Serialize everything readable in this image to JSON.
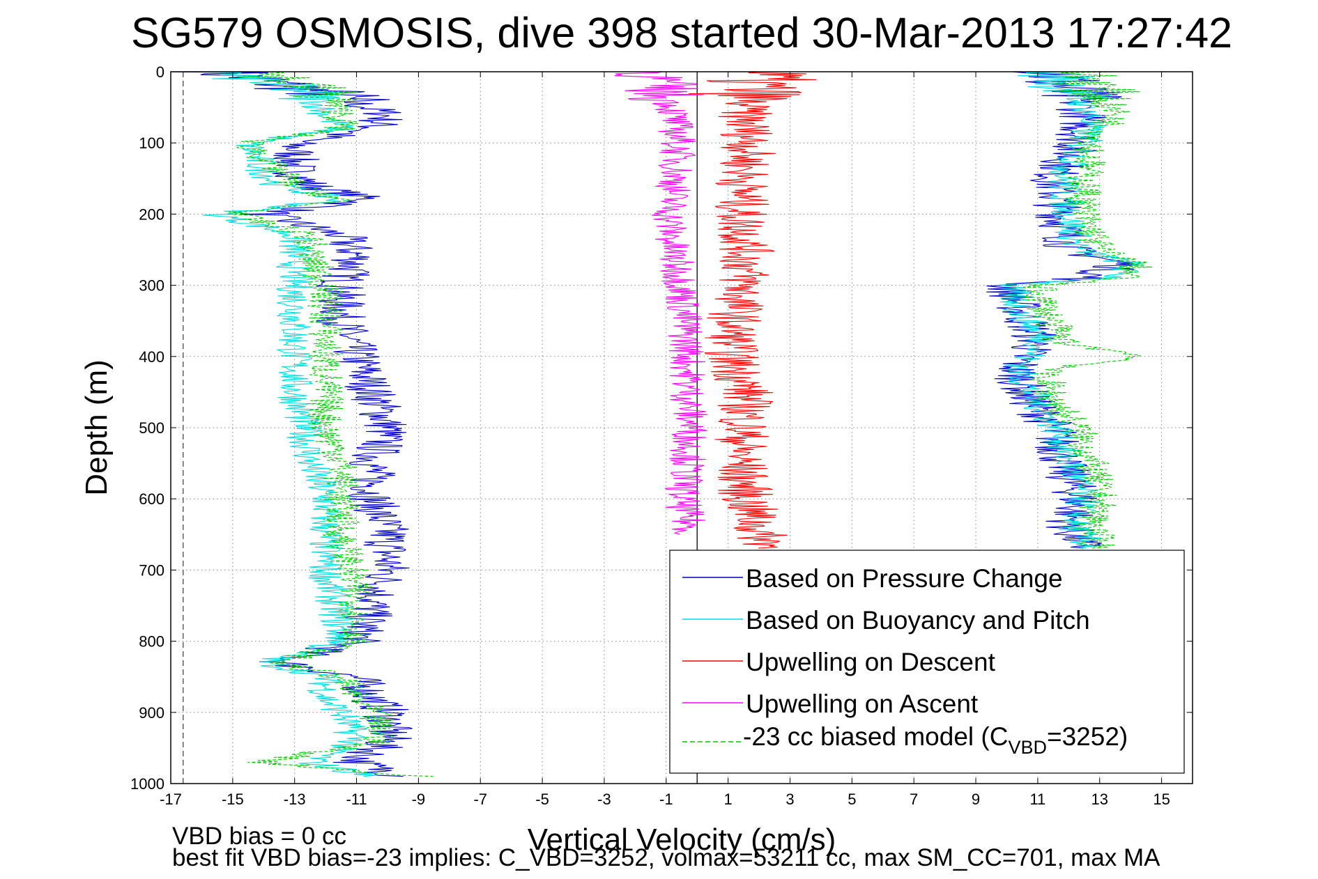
{
  "chart_data": {
    "type": "line",
    "title": "SG579 OSMOSIS, dive 398 started 30-Mar-2013 17:27:42",
    "xlabel": "Vertical Velocity (cm/s)",
    "ylabel": "Depth (m)",
    "xlim": [
      -17,
      16
    ],
    "ylim": [
      0,
      1000
    ],
    "y_reversed": true,
    "grid": true,
    "legend_position": "bottom-right",
    "xticks": [
      "-17",
      "-15",
      "-13",
      "-11",
      "-9",
      "-7",
      "-5",
      "-3",
      "-1",
      "1",
      "3",
      "5",
      "7",
      "9",
      "11",
      "13",
      "15"
    ],
    "yticks": [
      "0",
      "100",
      "200",
      "300",
      "400",
      "500",
      "600",
      "700",
      "800",
      "900",
      "1000"
    ],
    "reference_lines": [
      {
        "x": 0,
        "style": "solid",
        "color": "#000000"
      },
      {
        "x": -16.6,
        "style": "dashed",
        "color": "#555555"
      }
    ],
    "series": [
      {
        "name": "Based on Pressure Change",
        "color": "#0000cc",
        "style": "solid",
        "profiles": [
          {
            "depth": [
              0,
              30,
              60,
              80,
              100,
              140,
              160,
              180,
              200,
              230,
              260,
              300,
              350,
              400,
              450,
              500,
              550,
              600,
              650,
              700,
              750,
              800,
              830,
              850,
              880,
              900,
              940,
              970,
              990
            ],
            "x": [
              -15.5,
              -12,
              -10,
              -10.5,
              -13,
              -13,
              -12.5,
              -10.5,
              -14,
              -11.5,
              -11,
              -11.5,
              -11.5,
              -11,
              -10.5,
              -10,
              -10.5,
              -10.5,
              -10,
              -10,
              -10.5,
              -11,
              -13.5,
              -11,
              -10.5,
              -10,
              -10,
              -11,
              -9.5
            ]
          },
          {
            "depth": [
              0,
              30,
              60,
              100,
              150,
              200,
              250,
              270,
              290,
              300,
              340,
              380,
              400,
              420,
              460,
              500,
              550,
              600,
              640,
              670
            ],
            "x": [
              11.5,
              12,
              12.5,
              12.3,
              11.5,
              11.7,
              12,
              13.8,
              12.5,
              10,
              10.5,
              11,
              10.5,
              10.3,
              10.7,
              11.5,
              11.8,
              12.3,
              12,
              12.5
            ]
          }
        ]
      },
      {
        "name": "Based on Buoyancy and Pitch",
        "color": "#00dddd",
        "style": "solid",
        "profiles": [
          {
            "depth": [
              0,
              30,
              60,
              80,
              100,
              140,
              160,
              180,
              200,
              230,
              260,
              300,
              350,
              400,
              450,
              500,
              550,
              600,
              650,
              700,
              750,
              800,
              830,
              850,
              880,
              900,
              940,
              970,
              990
            ],
            "x": [
              -15.5,
              -12.5,
              -12,
              -11.5,
              -14.5,
              -14,
              -13.5,
              -11.5,
              -15.5,
              -13,
              -13,
              -13,
              -13,
              -13,
              -13,
              -12.7,
              -12.5,
              -12,
              -12,
              -12,
              -11.7,
              -11.5,
              -14,
              -12,
              -12,
              -11.5,
              -11,
              -12.5,
              -10.5
            ]
          },
          {
            "depth": [
              0,
              30,
              60,
              100,
              150,
              200,
              250,
              270,
              290,
              300,
              340,
              380,
              400,
              420,
              460,
              500,
              550,
              600,
              640,
              670
            ],
            "x": [
              11.5,
              12.2,
              12.7,
              12.5,
              11.8,
              12,
              12.3,
              14,
              13.5,
              10,
              10.5,
              11.2,
              10.7,
              10.4,
              10.9,
              11.6,
              12,
              12.5,
              12.2,
              12.7
            ]
          }
        ]
      },
      {
        "name": "Upwelling on Descent",
        "color": "#ff0000",
        "style": "solid",
        "profiles": [
          {
            "depth": [
              0,
              50,
              100,
              150,
              200,
              250,
              300,
              350,
              400,
              450,
              500,
              550,
              600,
              650,
              670
            ],
            "x": [
              2,
              1.5,
              1.7,
              1.5,
              1.4,
              1.6,
              1.5,
              1.2,
              1.1,
              1.6,
              1.5,
              1.4,
              1.6,
              2,
              2.5
            ]
          }
        ]
      },
      {
        "name": "Upwelling on Ascent",
        "color": "#ff00ff",
        "style": "solid",
        "profiles": [
          {
            "depth": [
              0,
              50,
              100,
              150,
              200,
              250,
              300,
              350,
              400,
              450,
              500,
              550,
              600,
              650
            ],
            "x": [
              -1.5,
              -0.8,
              -0.6,
              -0.7,
              -0.9,
              -0.8,
              -0.5,
              -0.4,
              -0.3,
              -0.3,
              -0.2,
              -0.3,
              -0.5,
              -0.2
            ]
          }
        ]
      },
      {
        "name": "-23 cc biased model (C",
        "name_subscript": "VBD",
        "name_suffix": "=3252)",
        "color": "#00cc00",
        "style": "dashed",
        "profiles": [
          {
            "depth": [
              0,
              30,
              60,
              80,
              100,
              140,
              160,
              180,
              200,
              230,
              260,
              300,
              350,
              400,
              450,
              500,
              550,
              600,
              650,
              700,
              750,
              800,
              830,
              850,
              880,
              900,
              940,
              970,
              990
            ],
            "x": [
              -14,
              -12,
              -11.5,
              -11.5,
              -14.5,
              -13.5,
              -13,
              -11.5,
              -15,
              -12.5,
              -12.5,
              -12,
              -12,
              -12,
              -12,
              -12,
              -11.5,
              -11.5,
              -11.5,
              -11.2,
              -11,
              -11,
              -13.5,
              -11.5,
              -11,
              -10.5,
              -10.2,
              -14,
              -9
            ]
          },
          {
            "depth": [
              0,
              30,
              60,
              100,
              150,
              200,
              250,
              270,
              290,
              300,
              340,
              380,
              400,
              420,
              460,
              500,
              550,
              600,
              640,
              670
            ],
            "x": [
              12.5,
              13,
              13.5,
              12.8,
              12.5,
              12.5,
              13,
              14.2,
              13.8,
              11,
              11.3,
              11.8,
              14.5,
              11.2,
              11.5,
              12.3,
              12.7,
              13,
              12.8,
              13
            ]
          }
        ]
      }
    ]
  },
  "notes": {
    "line1": "VBD bias = 0 cc",
    "line2": "best fit VBD bias=-23 implies: C_VBD=3252, volmax=53211 cc, max SM_CC=701, max MA"
  }
}
